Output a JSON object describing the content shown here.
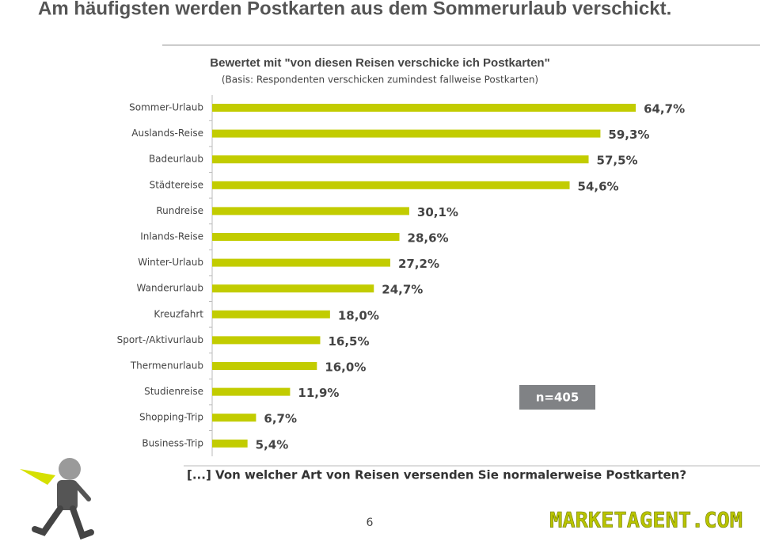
{
  "slide_title": "Am häufigsten werden Postkarten aus dem Sommerurlaub verschickt.",
  "question": "[...] Von welcher Art von Reisen versenden Sie normalerweise Postkarten?",
  "page_number": "6",
  "logo": "MARKETAGENT.COM",
  "chart_data": {
    "type": "bar",
    "orientation": "horizontal",
    "title": "Bewertet mit \"von diesen Reisen verschicke ich Postkarten\"",
    "subtitle": "(Basis: Respondenten verschicken zumindest fallweise Postkarten)",
    "categories": [
      "Sommer-Urlaub",
      "Auslands-Reise",
      "Badeurlaub",
      "Städtereise",
      "Rundreise",
      "Inlands-Reise",
      "Winter-Urlaub",
      "Wanderurlaub",
      "Kreuzfahrt",
      "Sport-/Aktivurlaub",
      "Thermenurlaub",
      "Studienreise",
      "Shopping-Trip",
      "Business-Trip"
    ],
    "values": [
      64.7,
      59.3,
      57.5,
      54.6,
      30.1,
      28.6,
      27.2,
      24.7,
      18.0,
      16.5,
      16.0,
      11.9,
      6.7,
      5.4
    ],
    "value_labels": [
      "64,7%",
      "59,3%",
      "57,5%",
      "54,6%",
      "30,1%",
      "28,6%",
      "27,2%",
      "24,7%",
      "18,0%",
      "16,5%",
      "16,0%",
      "11,9%",
      "6,7%",
      "5,4%"
    ],
    "color": "#c2cc00",
    "annotation": "n=405"
  }
}
